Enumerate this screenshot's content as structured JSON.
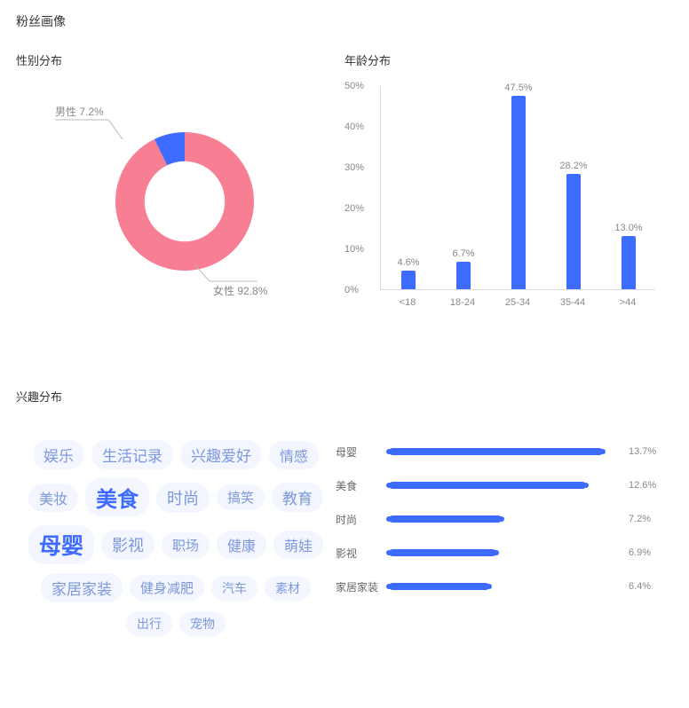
{
  "page_title": "粉丝画像",
  "gender": {
    "title": "性别分布",
    "slices": [
      {
        "label": "女性",
        "value": 92.8,
        "text": "女性 92.8%",
        "color": "#f87e93"
      },
      {
        "label": "男性",
        "value": 7.2,
        "text": "男性 7.2%",
        "color": "#3e6bff"
      }
    ],
    "inner_ratio": 0.58,
    "start_angle_deg": -90
  },
  "age": {
    "title": "年龄分布",
    "type": "bar",
    "y_max": 50,
    "y_step": 10,
    "y_suffix": "%",
    "bars": [
      {
        "label": "<18",
        "value": 4.6,
        "text": "4.6%"
      },
      {
        "label": "18-24",
        "value": 6.7,
        "text": "6.7%"
      },
      {
        "label": "25-34",
        "value": 47.5,
        "text": "47.5%"
      },
      {
        "label": "35-44",
        "value": 28.2,
        "text": "28.2%"
      },
      {
        "label": ">44",
        "value": 13.0,
        "text": "13.0%"
      }
    ],
    "bar_color": "#3e6bff",
    "axis_color": "#dddddd",
    "label_color": "#888888"
  },
  "interest": {
    "title": "兴趣分布",
    "cloud": {
      "bg_color": "#f3f6ff",
      "base_color": "#7b97dd",
      "hi_color": "#3e6bff",
      "words": [
        {
          "text": "娱乐",
          "size": 17
        },
        {
          "text": "生活记录",
          "size": 17
        },
        {
          "text": "兴趣爱好",
          "size": 17
        },
        {
          "text": "情感",
          "size": 16
        },
        {
          "text": "美妆",
          "size": 16
        },
        {
          "text": "美食",
          "size": 24,
          "hi": true
        },
        {
          "text": "时尚",
          "size": 18
        },
        {
          "text": "搞笑",
          "size": 15
        },
        {
          "text": "教育",
          "size": 17
        },
        {
          "text": "母婴",
          "size": 25,
          "hi": true
        },
        {
          "text": "影视",
          "size": 18
        },
        {
          "text": "职场",
          "size": 15
        },
        {
          "text": "健康",
          "size": 16
        },
        {
          "text": "萌娃",
          "size": 16
        },
        {
          "text": "家居家装",
          "size": 17
        },
        {
          "text": "健身减肥",
          "size": 15
        },
        {
          "text": "汽车",
          "size": 14
        },
        {
          "text": "素材",
          "size": 14
        },
        {
          "text": "出行",
          "size": 14
        },
        {
          "text": "宠物",
          "size": 14
        }
      ]
    },
    "hbar": {
      "max": 15,
      "bar_color": "#3e6bff",
      "items": [
        {
          "label": "母婴",
          "value": 13.7,
          "text": "13.7%"
        },
        {
          "label": "美食",
          "value": 12.6,
          "text": "12.6%"
        },
        {
          "label": "时尚",
          "value": 7.2,
          "text": "7.2%"
        },
        {
          "label": "影视",
          "value": 6.9,
          "text": "6.9%"
        },
        {
          "label": "家居家装",
          "value": 6.4,
          "text": "6.4%"
        }
      ]
    }
  }
}
